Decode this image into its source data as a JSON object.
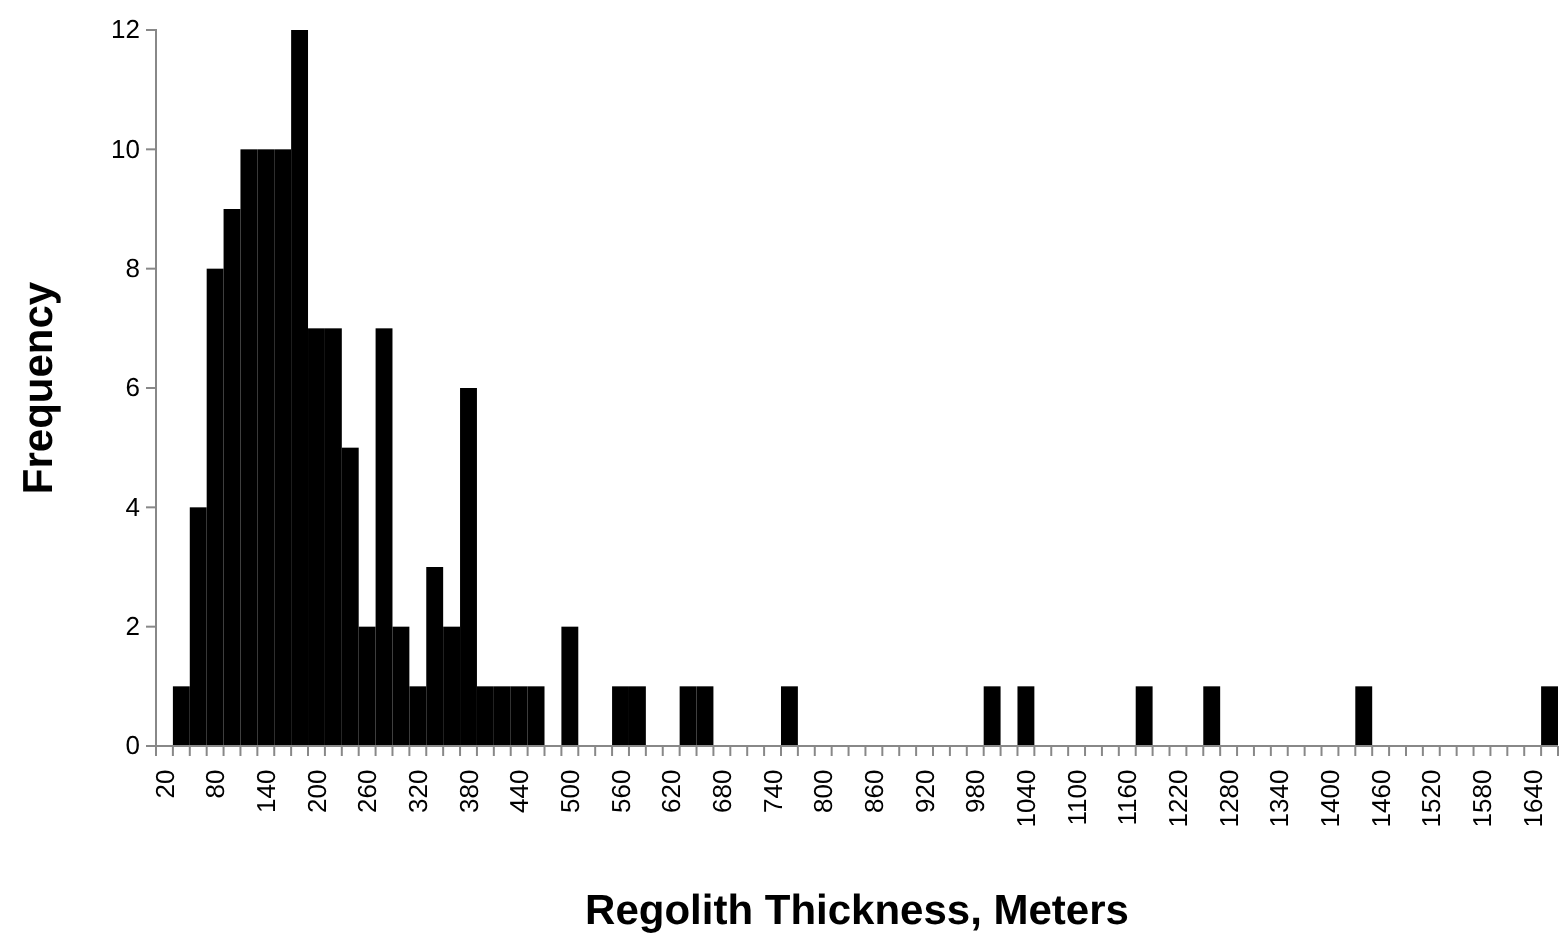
{
  "chart_data": {
    "type": "bar",
    "xlabel": "Regolith Thickness, Meters",
    "ylabel": "Frequency",
    "categories": [
      "20",
      null,
      null,
      "80",
      null,
      null,
      "140",
      null,
      null,
      "200",
      null,
      null,
      "260",
      null,
      null,
      "320",
      null,
      null,
      "380",
      null,
      null,
      "440",
      null,
      null,
      "500",
      null,
      null,
      "560",
      null,
      null,
      "620",
      null,
      null,
      "680",
      null,
      null,
      "740",
      null,
      null,
      "800",
      null,
      null,
      "860",
      null,
      null,
      "920",
      null,
      null,
      "980",
      null,
      null,
      "1040",
      null,
      null,
      "1100",
      null,
      null,
      "1160",
      null,
      null,
      "1220",
      null,
      null,
      "1280",
      null,
      null,
      "1340",
      null,
      null,
      "1400",
      null,
      null,
      "1460",
      null,
      null,
      "1520",
      null,
      null,
      "1580",
      null,
      null,
      "1640",
      null
    ],
    "values": [
      0,
      1,
      4,
      8,
      9,
      10,
      10,
      10,
      12,
      7,
      7,
      5,
      2,
      7,
      2,
      1,
      3,
      2,
      6,
      1,
      1,
      1,
      1,
      0,
      2,
      0,
      0,
      1,
      1,
      0,
      0,
      1,
      1,
      0,
      0,
      0,
      0,
      1,
      0,
      0,
      0,
      0,
      0,
      0,
      0,
      0,
      0,
      0,
      0,
      1,
      0,
      1,
      0,
      0,
      0,
      0,
      0,
      0,
      1,
      0,
      0,
      0,
      1,
      0,
      0,
      0,
      0,
      0,
      0,
      0,
      0,
      1,
      0,
      0,
      0,
      0,
      0,
      0,
      0,
      0,
      0,
      0,
      1
    ],
    "color": "#000000",
    "ylim": [
      0,
      12
    ],
    "yticks": [
      0,
      2,
      4,
      6,
      8,
      10,
      12
    ],
    "grid": false
  }
}
